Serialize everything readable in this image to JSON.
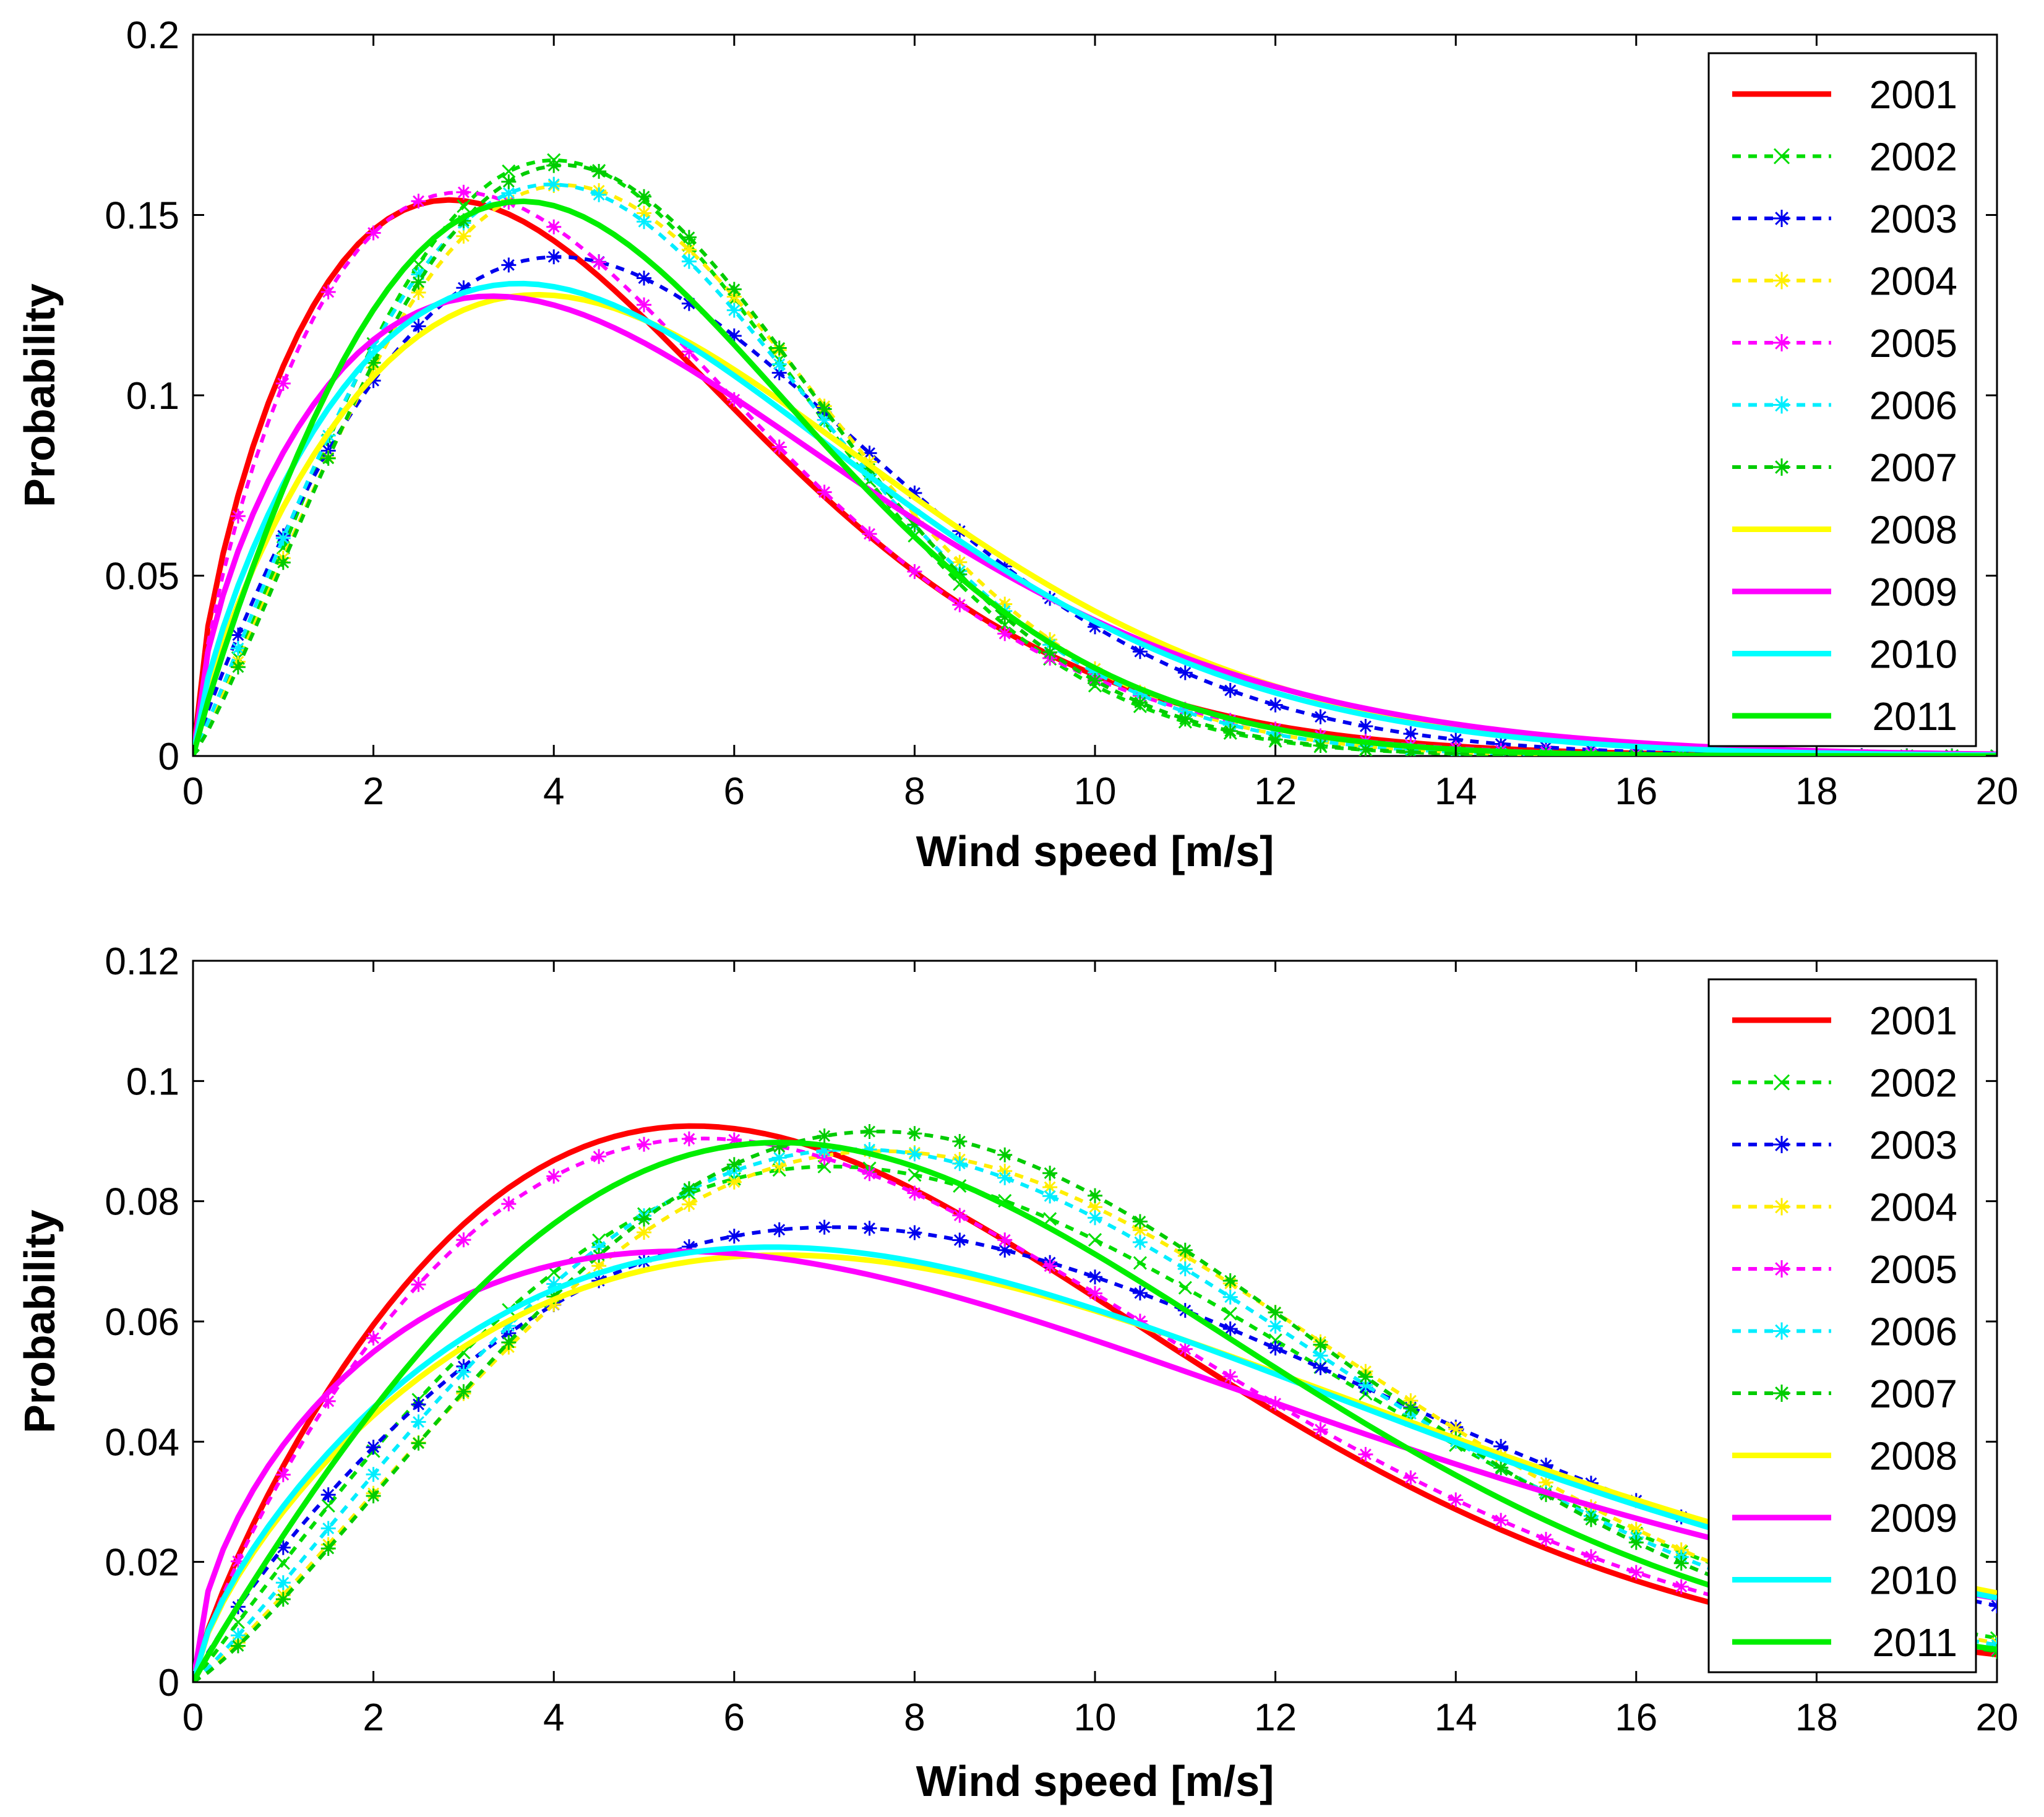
{
  "chart_data": [
    {
      "type": "line",
      "title": "",
      "xlabel": "Wind speed [m/s]",
      "ylabel": "Probability",
      "xlim": [
        0,
        20
      ],
      "ylim": [
        0,
        0.2
      ],
      "xticks": [
        0,
        2,
        4,
        6,
        8,
        10,
        12,
        14,
        16,
        18,
        20
      ],
      "xtick_labels": [
        "0",
        "2",
        "4",
        "6",
        "8",
        "10",
        "12",
        "14",
        "16",
        "18",
        "20"
      ],
      "yticks": [
        0,
        0.05,
        0.1,
        0.15,
        0.2
      ],
      "ytick_labels": [
        "0",
        "0.05",
        "0.1",
        "0.15",
        "0.2"
      ],
      "grid": false,
      "legend_position": "top-right",
      "series": [
        {
          "name": "2001",
          "style": "solid",
          "marker": "",
          "color": "#ff0000",
          "weibull": {
            "k": 1.65,
            "c": 5.0
          }
        },
        {
          "name": "2002",
          "style": "dashed",
          "marker": "x",
          "color": "#00dd00",
          "weibull": {
            "k": 2.12,
            "c": 5.4
          }
        },
        {
          "name": "2003",
          "style": "dashed",
          "marker": "*",
          "color": "#0000ee",
          "weibull": {
            "k": 1.9,
            "c": 6.0
          }
        },
        {
          "name": "2004",
          "style": "dashed",
          "marker": "*",
          "color": "#ffee00",
          "weibull": {
            "k": 2.1,
            "c": 5.6
          }
        },
        {
          "name": "2005",
          "style": "dashed",
          "marker": "*",
          "color": "#ff00ff",
          "weibull": {
            "k": 1.7,
            "c": 5.0
          }
        },
        {
          "name": "2006",
          "style": "dashed",
          "marker": "*",
          "color": "#00eeff",
          "weibull": {
            "k": 2.05,
            "c": 5.5
          }
        },
        {
          "name": "2007",
          "style": "dashed",
          "marker": "*",
          "color": "#00cc00",
          "weibull": {
            "k": 2.15,
            "c": 5.5
          }
        },
        {
          "name": "2008",
          "style": "solid",
          "marker": "",
          "color": "#ffff00",
          "weibull": {
            "k": 1.75,
            "c": 6.2
          }
        },
        {
          "name": "2009",
          "style": "solid",
          "marker": "",
          "color": "#ff00ff",
          "weibull": {
            "k": 1.62,
            "c": 6.0
          }
        },
        {
          "name": "2010",
          "style": "solid",
          "marker": "",
          "color": "#00ffff",
          "weibull": {
            "k": 1.72,
            "c": 6.0
          }
        },
        {
          "name": "2011",
          "style": "solid",
          "marker": "",
          "color": "#00ee00",
          "weibull": {
            "k": 1.9,
            "c": 5.4
          }
        }
      ]
    },
    {
      "type": "line",
      "title": "",
      "xlabel": "Wind speed [m/s]",
      "ylabel": "Probability",
      "xlim": [
        0,
        20
      ],
      "ylim": [
        0,
        0.12
      ],
      "xticks": [
        0,
        2,
        4,
        6,
        8,
        10,
        12,
        14,
        16,
        18,
        20
      ],
      "xtick_labels": [
        "0",
        "2",
        "4",
        "6",
        "8",
        "10",
        "12",
        "14",
        "16",
        "18",
        "20"
      ],
      "yticks": [
        0,
        0.02,
        0.04,
        0.06,
        0.08,
        0.1,
        0.12
      ],
      "ytick_labels": [
        "0",
        "0.02",
        "0.04",
        "0.06",
        "0.08",
        "0.1",
        "0.12"
      ],
      "grid": false,
      "legend_position": "top-right",
      "series": [
        {
          "name": "2001",
          "style": "solid",
          "marker": "",
          "color": "#ff0000",
          "weibull": {
            "k": 1.8,
            "c": 8.7
          }
        },
        {
          "name": "2002",
          "style": "dashed",
          "marker": "x",
          "color": "#00dd00",
          "weibull": {
            "k": 2.0,
            "c": 10.0
          }
        },
        {
          "name": "2003",
          "style": "dashed",
          "marker": "*",
          "color": "#0000ee",
          "weibull": {
            "k": 1.85,
            "c": 10.8
          }
        },
        {
          "name": "2004",
          "style": "dashed",
          "marker": "*",
          "color": "#ffee00",
          "weibull": {
            "k": 2.15,
            "c": 10.2
          }
        },
        {
          "name": "2005",
          "style": "dashed",
          "marker": "*",
          "color": "#ff00ff",
          "weibull": {
            "k": 1.8,
            "c": 8.9
          }
        },
        {
          "name": "2006",
          "style": "dashed",
          "marker": "*",
          "color": "#00eeff",
          "weibull": {
            "k": 2.1,
            "c": 10.0
          }
        },
        {
          "name": "2007",
          "style": "dashed",
          "marker": "*",
          "color": "#00cc00",
          "weibull": {
            "k": 2.2,
            "c": 10.0
          }
        },
        {
          "name": "2008",
          "style": "solid",
          "marker": "",
          "color": "#ffff00",
          "weibull": {
            "k": 1.7,
            "c": 11.0
          }
        },
        {
          "name": "2009",
          "style": "solid",
          "marker": "",
          "color": "#ff00ff",
          "weibull": {
            "k": 1.55,
            "c": 10.5
          }
        },
        {
          "name": "2010",
          "style": "solid",
          "marker": "",
          "color": "#00ffff",
          "weibull": {
            "k": 1.7,
            "c": 10.8
          }
        },
        {
          "name": "2011",
          "style": "solid",
          "marker": "",
          "color": "#00ee00",
          "weibull": {
            "k": 1.95,
            "c": 9.4
          }
        }
      ]
    }
  ]
}
